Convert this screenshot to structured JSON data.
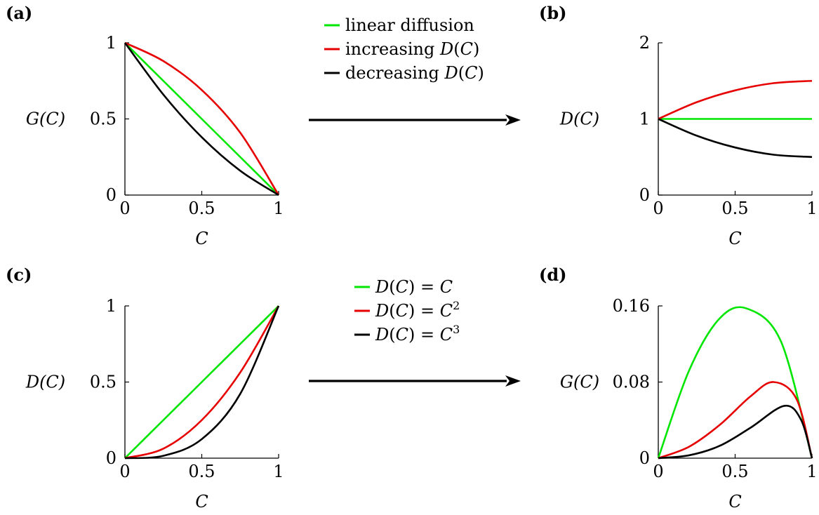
{
  "colors": {
    "green": "#00e600",
    "red": "#e60000",
    "black": "#000000"
  },
  "chart_data": [
    {
      "panel": "(a)",
      "type": "line",
      "xlabel": "C",
      "ylabel": "G(C)",
      "xlim": [
        0,
        1
      ],
      "ylim": [
        0,
        1
      ],
      "xticks": [
        "0",
        "0.5",
        "1"
      ],
      "yticks": [
        "0",
        "0.5",
        "1"
      ],
      "series": [
        {
          "color": "green",
          "x": [
            0,
            0.25,
            0.5,
            0.75,
            1
          ],
          "y": [
            1,
            0.75,
            0.5,
            0.25,
            0
          ]
        },
        {
          "color": "red",
          "x": [
            0,
            0.25,
            0.5,
            0.75,
            1
          ],
          "y": [
            1,
            0.88,
            0.69,
            0.41,
            0
          ]
        },
        {
          "color": "black",
          "x": [
            0,
            0.25,
            0.5,
            0.75,
            1
          ],
          "y": [
            1,
            0.66,
            0.38,
            0.16,
            0
          ]
        }
      ]
    },
    {
      "panel": "(b)",
      "type": "line",
      "xlabel": "C",
      "ylabel": "D(C)",
      "xlim": [
        0,
        1
      ],
      "ylim": [
        0,
        2
      ],
      "xticks": [
        "0",
        "0.5",
        "1"
      ],
      "yticks": [
        "0",
        "1",
        "2"
      ],
      "series": [
        {
          "color": "green",
          "x": [
            0,
            0.25,
            0.5,
            0.75,
            1
          ],
          "y": [
            1,
            1,
            1,
            1,
            1
          ]
        },
        {
          "color": "red",
          "x": [
            0,
            0.25,
            0.5,
            0.75,
            1
          ],
          "y": [
            1,
            1.22,
            1.375,
            1.47,
            1.5
          ]
        },
        {
          "color": "black",
          "x": [
            0,
            0.25,
            0.5,
            0.75,
            1
          ],
          "y": [
            1,
            0.78,
            0.625,
            0.53,
            0.5
          ]
        }
      ]
    },
    {
      "panel": "(c)",
      "type": "line",
      "xlabel": "C",
      "ylabel": "D(C)",
      "xlim": [
        0,
        1
      ],
      "ylim": [
        0,
        1
      ],
      "xticks": [
        "0",
        "0.5",
        "1"
      ],
      "yticks": [
        "0",
        "0.5",
        "1"
      ],
      "series": [
        {
          "color": "green",
          "x": [
            0,
            0.25,
            0.5,
            0.75,
            1
          ],
          "y": [
            0,
            0.25,
            0.5,
            0.75,
            1
          ]
        },
        {
          "color": "red",
          "x": [
            0,
            0.25,
            0.5,
            0.75,
            1
          ],
          "y": [
            0,
            0.0625,
            0.25,
            0.5625,
            1
          ]
        },
        {
          "color": "black",
          "x": [
            0,
            0.25,
            0.5,
            0.75,
            1
          ],
          "y": [
            0,
            0.0156,
            0.125,
            0.4219,
            1
          ]
        }
      ]
    },
    {
      "panel": "(d)",
      "type": "line",
      "xlabel": "C",
      "ylabel": "G(C)",
      "xlim": [
        0,
        1
      ],
      "ylim": [
        0,
        0.16
      ],
      "xticks": [
        "0",
        "0.5",
        "1"
      ],
      "yticks": [
        "0",
        "0.08",
        "0.16"
      ],
      "series": [
        {
          "color": "green",
          "x": [
            0,
            0.2,
            0.4,
            0.58,
            0.8,
            1
          ],
          "y": [
            0,
            0.092,
            0.147,
            0.157,
            0.122,
            0
          ]
        },
        {
          "color": "red",
          "x": [
            0,
            0.2,
            0.4,
            0.6,
            0.75,
            0.9,
            1
          ],
          "y": [
            0,
            0.012,
            0.035,
            0.065,
            0.08,
            0.062,
            0
          ]
        },
        {
          "color": "black",
          "x": [
            0,
            0.2,
            0.4,
            0.6,
            0.82,
            0.93,
            1
          ],
          "y": [
            0,
            0.003,
            0.013,
            0.032,
            0.055,
            0.04,
            0
          ]
        }
      ]
    }
  ],
  "legends": [
    {
      "items": [
        {
          "color": "green",
          "parts": [
            [
              "t",
              "linear diffusion"
            ]
          ]
        },
        {
          "color": "red",
          "parts": [
            [
              "t",
              "increasing "
            ],
            [
              "i",
              "D"
            ],
            [
              "t",
              "("
            ],
            [
              "i",
              "C"
            ],
            [
              "t",
              ")"
            ]
          ]
        },
        {
          "color": "black",
          "parts": [
            [
              "t",
              "decreasing "
            ],
            [
              "i",
              "D"
            ],
            [
              "t",
              "("
            ],
            [
              "i",
              "C"
            ],
            [
              "t",
              ")"
            ]
          ]
        }
      ]
    },
    {
      "items": [
        {
          "color": "green",
          "parts": [
            [
              "i",
              "D"
            ],
            [
              "t",
              "("
            ],
            [
              "i",
              "C"
            ],
            [
              "t",
              ") = "
            ],
            [
              "i",
              "C"
            ]
          ]
        },
        {
          "color": "red",
          "parts": [
            [
              "i",
              "D"
            ],
            [
              "t",
              "("
            ],
            [
              "i",
              "C"
            ],
            [
              "t",
              ") = "
            ],
            [
              "i",
              "C"
            ],
            [
              "s",
              "2"
            ]
          ]
        },
        {
          "color": "black",
          "parts": [
            [
              "i",
              "D"
            ],
            [
              "t",
              "("
            ],
            [
              "i",
              "C"
            ],
            [
              "t",
              ") = "
            ],
            [
              "i",
              "C"
            ],
            [
              "s",
              "3"
            ]
          ]
        }
      ]
    }
  ]
}
